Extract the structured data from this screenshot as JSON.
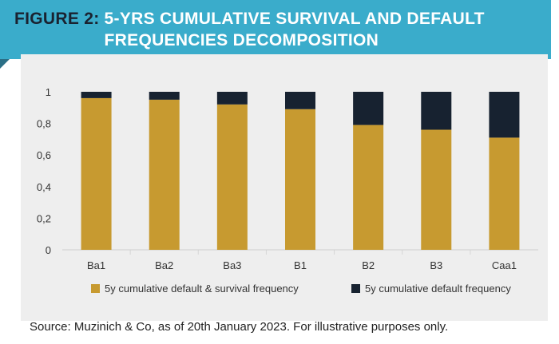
{
  "figure": {
    "label": "FIGURE 2:",
    "title_line1": "5-YRS CUMULATIVE SURVIVAL AND DEFAULT",
    "title_line2": "FREQUENCIES DECOMPOSITION"
  },
  "source_note": "Source: Muzinich & Co, as of 20th January 2023. For illustrative purposes only.",
  "colors": {
    "banner": "#3aaccb",
    "survival": "#c79a30",
    "default": "#172230",
    "panel": "#eeeeee"
  },
  "chart_data": {
    "type": "bar",
    "stacked": true,
    "categories": [
      "Ba1",
      "Ba2",
      "Ba3",
      "B1",
      "B2",
      "B3",
      "Caa1"
    ],
    "series": [
      {
        "name": "5y cumulative default & survival frequency",
        "values": [
          0.96,
          0.95,
          0.92,
          0.89,
          0.79,
          0.76,
          0.71
        ]
      },
      {
        "name": "5y cumulative default frequency",
        "values": [
          0.04,
          0.05,
          0.08,
          0.11,
          0.21,
          0.24,
          0.29
        ]
      }
    ],
    "yticks": [
      "0",
      "0,2",
      "0,4",
      "0,6",
      "0,8",
      "1"
    ],
    "ytick_values": [
      0,
      0.2,
      0.4,
      0.6,
      0.8,
      1
    ],
    "ylim": [
      0,
      1
    ],
    "grid": "vertical separators between categories",
    "legend": "bottom"
  }
}
